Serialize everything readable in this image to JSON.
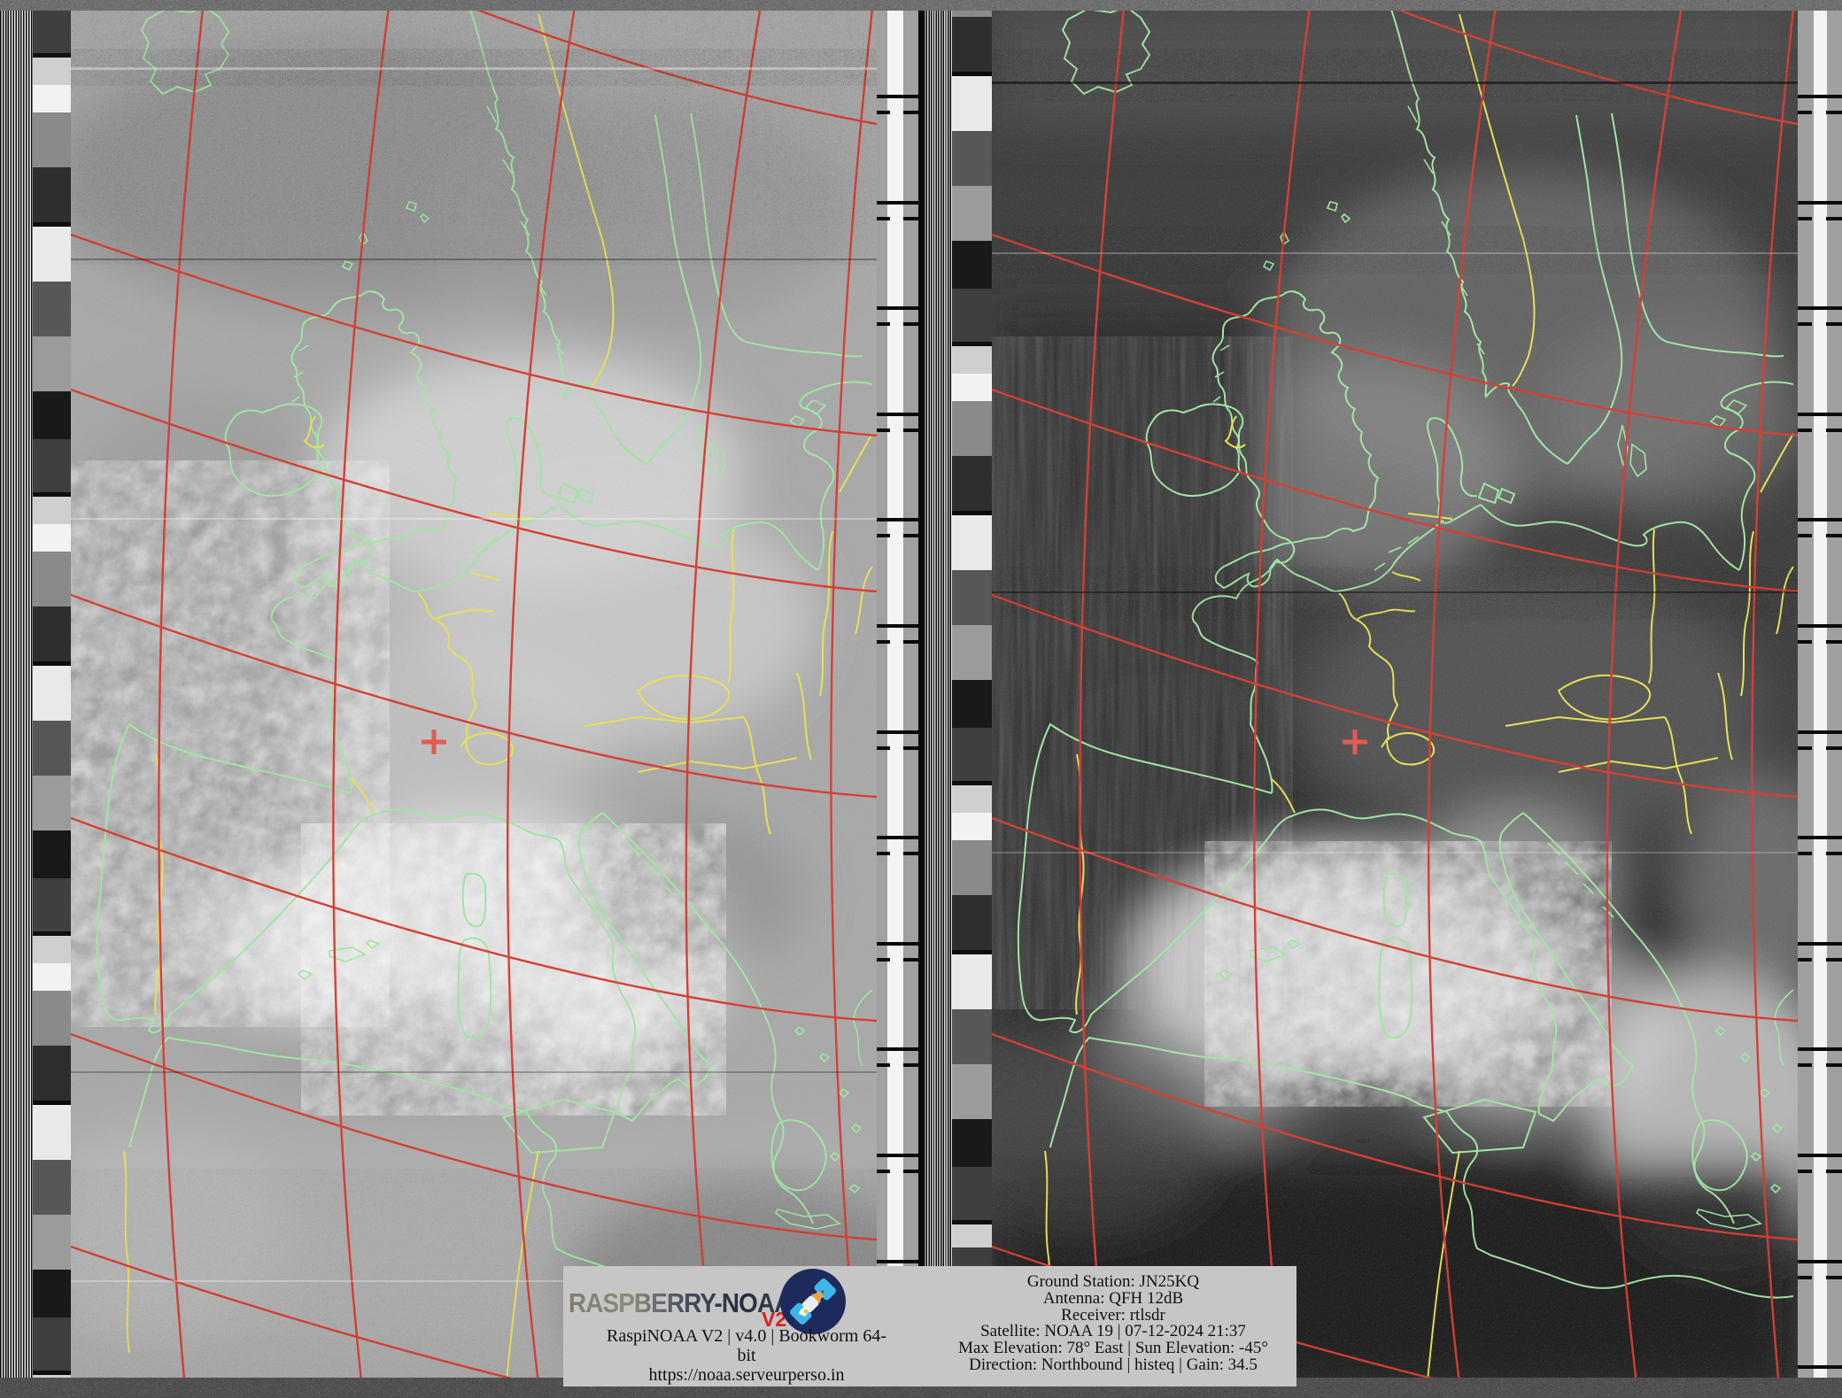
{
  "station_panel": {
    "lines": [
      "Ground Station: JN25KQ",
      "Antenna: QFH 12dB",
      "Receiver: rtlsdr",
      "Satellite: NOAA 19 | 07-12-2024 21:37",
      "Max Elevation: 78° East | Sun Elevation: -45°",
      "Direction: Northbound | histeq | Gain: 34.5"
    ],
    "background": "#c6c6c6"
  },
  "branding": {
    "wordmark": "RASPBERRY-NOAA",
    "version_badge": "V2",
    "caption": "RaspiNOAA V2 | v4.0 | Bookworm 64-bit",
    "url": "https://noaa.serveurperso.in"
  },
  "overlay_colors": {
    "coastline_green": "#9fe8a0",
    "border_yellow": "#e8e34f",
    "graticule_red": "#d8362a",
    "station_marker_red": "#e2554a"
  },
  "logo_colors": {
    "badge_circle": "#1d2a5c",
    "solar_panel_blue": "#3fb6e8",
    "pencil_orange": "#f0a040",
    "version_red": "#d3241f"
  }
}
